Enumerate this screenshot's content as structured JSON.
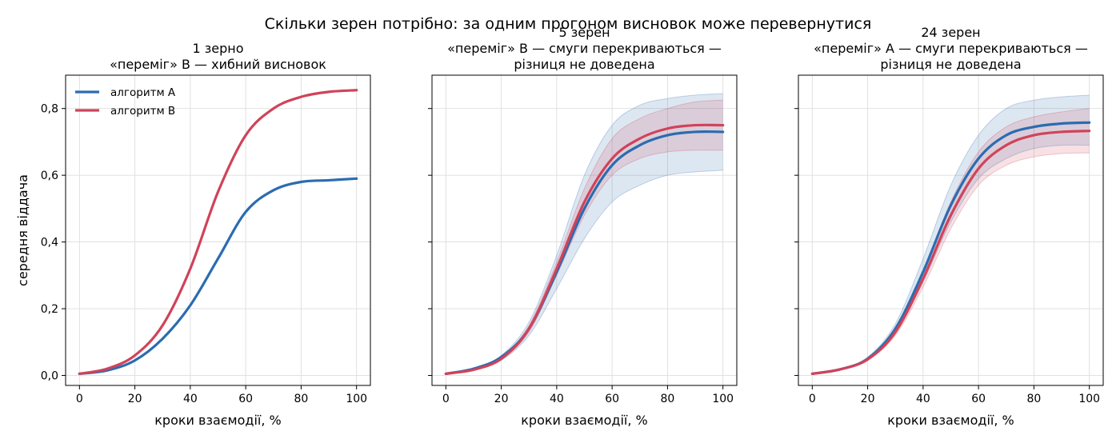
{
  "figure": {
    "suptitle": "Скільки зерен потрібно: за одним прогоном висновок може перевернутися",
    "ylabel": "середня віддача",
    "legend": {
      "position": "upper-left",
      "entries": [
        "алгоритм A",
        "алгоритм B"
      ]
    },
    "colors": {
      "A": "#2b6cb0",
      "B": "#d0435a",
      "grid": "#dddddd"
    }
  },
  "chart_data": [
    {
      "type": "line",
      "title": [
        "1 зерно",
        "«переміг» B — хибний висновок"
      ],
      "xlabel": "кроки взаємодії, %",
      "ylabel": "середня віддача",
      "xlim": [
        -5,
        105
      ],
      "ylim": [
        -0.03,
        0.9
      ],
      "xticks": [
        0,
        20,
        40,
        60,
        80,
        100
      ],
      "yticks": [
        "0,0",
        "0,2",
        "0,4",
        "0,6",
        "0,8"
      ],
      "grid": true,
      "x": [
        0,
        10,
        20,
        30,
        40,
        50,
        60,
        70,
        80,
        90,
        100
      ],
      "series": [
        {
          "name": "алгоритм A",
          "key": "A",
          "values": [
            0.005,
            0.015,
            0.045,
            0.11,
            0.21,
            0.35,
            0.49,
            0.555,
            0.58,
            0.585,
            0.59
          ]
        },
        {
          "name": "алгоритм B",
          "key": "B",
          "values": [
            0.005,
            0.02,
            0.06,
            0.15,
            0.32,
            0.55,
            0.72,
            0.8,
            0.835,
            0.85,
            0.855
          ]
        }
      ]
    },
    {
      "type": "area",
      "title": [
        "5 зерен",
        "«переміг» B — смуги перекриваються —",
        "різниця не доведена"
      ],
      "xlabel": "кроки взаємодії, %",
      "xlim": [
        -5,
        105
      ],
      "ylim": [
        -0.03,
        0.9
      ],
      "xticks": [
        0,
        20,
        40,
        60,
        80,
        100
      ],
      "yticks": [
        "0,0",
        "0,2",
        "0,4",
        "0,6",
        "0,8"
      ],
      "grid": true,
      "x": [
        0,
        10,
        20,
        30,
        40,
        50,
        60,
        70,
        80,
        90,
        100
      ],
      "series": [
        {
          "name": "алгоритм A",
          "key": "A",
          "values": [
            0.005,
            0.02,
            0.055,
            0.14,
            0.31,
            0.5,
            0.63,
            0.69,
            0.72,
            0.73,
            0.73
          ],
          "lower": [
            0.005,
            0.018,
            0.045,
            0.12,
            0.26,
            0.41,
            0.52,
            0.57,
            0.6,
            0.61,
            0.615
          ],
          "upper": [
            0.005,
            0.022,
            0.06,
            0.16,
            0.36,
            0.6,
            0.75,
            0.81,
            0.83,
            0.84,
            0.845
          ]
        },
        {
          "name": "алгоритм B",
          "key": "B",
          "values": [
            0.005,
            0.017,
            0.05,
            0.14,
            0.32,
            0.52,
            0.65,
            0.71,
            0.74,
            0.75,
            0.75
          ],
          "lower": [
            0.005,
            0.016,
            0.048,
            0.13,
            0.3,
            0.48,
            0.6,
            0.65,
            0.67,
            0.675,
            0.675
          ],
          "upper": [
            0.005,
            0.018,
            0.052,
            0.15,
            0.34,
            0.56,
            0.71,
            0.77,
            0.8,
            0.82,
            0.825
          ]
        }
      ]
    },
    {
      "type": "area",
      "title": [
        "24 зерен",
        "«переміг» A — смуги перекриваються —",
        "різниця не доведена"
      ],
      "xlabel": "кроки взаємодії, %",
      "xlim": [
        -5,
        105
      ],
      "ylim": [
        -0.03,
        0.9
      ],
      "xticks": [
        0,
        20,
        40,
        60,
        80,
        100
      ],
      "yticks": [
        "0,0",
        "0,2",
        "0,4",
        "0,6",
        "0,8"
      ],
      "grid": true,
      "x": [
        0,
        10,
        20,
        30,
        40,
        50,
        60,
        70,
        80,
        90,
        100
      ],
      "series": [
        {
          "name": "алгоритм A",
          "key": "A",
          "values": [
            0.005,
            0.018,
            0.05,
            0.14,
            0.31,
            0.51,
            0.65,
            0.72,
            0.745,
            0.755,
            0.758
          ],
          "lower": [
            0.005,
            0.016,
            0.046,
            0.125,
            0.28,
            0.46,
            0.59,
            0.65,
            0.68,
            0.69,
            0.69
          ],
          "upper": [
            0.005,
            0.02,
            0.055,
            0.155,
            0.35,
            0.57,
            0.72,
            0.8,
            0.825,
            0.835,
            0.84
          ]
        },
        {
          "name": "алгоритм B",
          "key": "B",
          "values": [
            0.005,
            0.018,
            0.048,
            0.13,
            0.29,
            0.48,
            0.62,
            0.69,
            0.72,
            0.73,
            0.733
          ],
          "lower": [
            0.005,
            0.017,
            0.045,
            0.12,
            0.265,
            0.44,
            0.57,
            0.63,
            0.655,
            0.665,
            0.667
          ],
          "upper": [
            0.005,
            0.019,
            0.051,
            0.14,
            0.315,
            0.52,
            0.67,
            0.745,
            0.775,
            0.79,
            0.8
          ]
        }
      ]
    }
  ]
}
